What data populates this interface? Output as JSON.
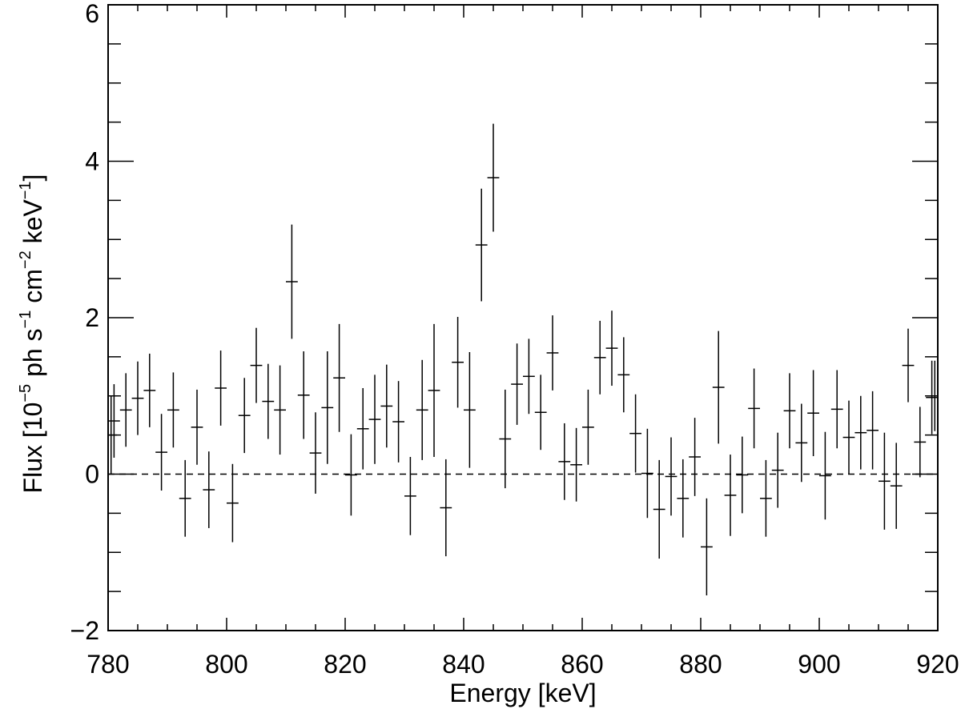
{
  "chart_data": {
    "type": "scatter",
    "xlabel": "Energy [keV]",
    "ylabel": {
      "prefix": "Flux [10",
      "exp1": "−5",
      "mid1": " ph s",
      "exp2": "−1",
      "mid2": " cm",
      "exp3": "−2",
      "mid3": " keV",
      "exp4": "−1",
      "suffix": "]"
    },
    "xlim": [
      780,
      920
    ],
    "ylim": [
      -2,
      6
    ],
    "x_ticks": [
      780,
      800,
      820,
      840,
      860,
      880,
      900,
      920
    ],
    "x_tick_labels": [
      "780",
      "800",
      "820",
      "840",
      "860",
      "880",
      "900",
      "920"
    ],
    "y_ticks": [
      -2,
      0,
      2,
      4,
      6
    ],
    "y_tick_labels": [
      "−2",
      "0",
      "2",
      "4",
      "6"
    ],
    "x_minor_step": 5,
    "y_minor_step": 0.5,
    "reference_line": {
      "y": 0,
      "style": "dashed"
    },
    "series": [
      {
        "bin_half_width": 1,
        "points": [
          {
            "x": 780.5,
            "y": 0.5,
            "err": 0.5
          },
          {
            "x": 781,
            "y": 0.68,
            "err": 0.47
          },
          {
            "x": 783,
            "y": 0.82,
            "err": 0.47
          },
          {
            "x": 785,
            "y": 0.97,
            "err": 0.47
          },
          {
            "x": 787,
            "y": 1.07,
            "err": 0.47
          },
          {
            "x": 789,
            "y": 0.28,
            "err": 0.49
          },
          {
            "x": 791,
            "y": 0.82,
            "err": 0.48
          },
          {
            "x": 793,
            "y": -0.31,
            "err": 0.49
          },
          {
            "x": 795,
            "y": 0.6,
            "err": 0.48
          },
          {
            "x": 797,
            "y": -0.2,
            "err": 0.49
          },
          {
            "x": 799,
            "y": 1.1,
            "err": 0.48
          },
          {
            "x": 801,
            "y": -0.37,
            "err": 0.5
          },
          {
            "x": 803,
            "y": 0.75,
            "err": 0.48
          },
          {
            "x": 805,
            "y": 1.39,
            "err": 0.48
          },
          {
            "x": 807,
            "y": 0.93,
            "err": 0.48
          },
          {
            "x": 809,
            "y": 0.82,
            "err": 0.57
          },
          {
            "x": 811,
            "y": 2.46,
            "err": 0.73
          },
          {
            "x": 813,
            "y": 1.01,
            "err": 0.56
          },
          {
            "x": 815,
            "y": 0.27,
            "err": 0.52
          },
          {
            "x": 817,
            "y": 0.85,
            "err": 0.72
          },
          {
            "x": 819,
            "y": 1.23,
            "err": 0.69
          },
          {
            "x": 821,
            "y": -0.01,
            "err": 0.52
          },
          {
            "x": 823,
            "y": 0.58,
            "err": 0.52
          },
          {
            "x": 825,
            "y": 0.7,
            "err": 0.57
          },
          {
            "x": 827,
            "y": 0.87,
            "err": 0.53
          },
          {
            "x": 829,
            "y": 0.67,
            "err": 0.52
          },
          {
            "x": 831,
            "y": -0.28,
            "err": 0.5
          },
          {
            "x": 833,
            "y": 0.82,
            "err": 0.64
          },
          {
            "x": 835,
            "y": 1.07,
            "err": 0.85
          },
          {
            "x": 837,
            "y": -0.43,
            "err": 0.62
          },
          {
            "x": 839,
            "y": 1.43,
            "err": 0.58
          },
          {
            "x": 841,
            "y": 0.82,
            "err": 0.74
          },
          {
            "x": 843,
            "y": 2.93,
            "err": 0.72
          },
          {
            "x": 845,
            "y": 3.79,
            "err": 0.69
          },
          {
            "x": 847,
            "y": 0.45,
            "err": 0.63
          },
          {
            "x": 849,
            "y": 1.15,
            "err": 0.52
          },
          {
            "x": 851,
            "y": 1.25,
            "err": 0.48
          },
          {
            "x": 853,
            "y": 0.79,
            "err": 0.48
          },
          {
            "x": 855,
            "y": 1.55,
            "err": 0.48
          },
          {
            "x": 857,
            "y": 0.16,
            "err": 0.49
          },
          {
            "x": 859,
            "y": 0.12,
            "err": 0.47
          },
          {
            "x": 861,
            "y": 0.6,
            "err": 0.48
          },
          {
            "x": 863,
            "y": 1.49,
            "err": 0.47
          },
          {
            "x": 865,
            "y": 1.61,
            "err": 0.48
          },
          {
            "x": 867,
            "y": 1.27,
            "err": 0.48
          },
          {
            "x": 869,
            "y": 0.52,
            "err": 0.5
          },
          {
            "x": 871,
            "y": 0.01,
            "err": 0.57
          },
          {
            "x": 873,
            "y": -0.45,
            "err": 0.63
          },
          {
            "x": 875,
            "y": -0.03,
            "err": 0.5
          },
          {
            "x": 877,
            "y": -0.31,
            "err": 0.5
          },
          {
            "x": 879,
            "y": 0.22,
            "err": 0.5
          },
          {
            "x": 881,
            "y": -0.93,
            "err": 0.62
          },
          {
            "x": 883,
            "y": 1.11,
            "err": 0.72
          },
          {
            "x": 885,
            "y": -0.27,
            "err": 0.52
          },
          {
            "x": 887,
            "y": -0.01,
            "err": 0.49
          },
          {
            "x": 889,
            "y": 0.84,
            "err": 0.51
          },
          {
            "x": 891,
            "y": -0.31,
            "err": 0.49
          },
          {
            "x": 893,
            "y": 0.05,
            "err": 0.48
          },
          {
            "x": 895,
            "y": 0.81,
            "err": 0.48
          },
          {
            "x": 897,
            "y": 0.4,
            "err": 0.5
          },
          {
            "x": 899,
            "y": 0.78,
            "err": 0.55
          },
          {
            "x": 901,
            "y": -0.02,
            "err": 0.56
          },
          {
            "x": 903,
            "y": 0.83,
            "err": 0.5
          },
          {
            "x": 905,
            "y": 0.47,
            "err": 0.47
          },
          {
            "x": 907,
            "y": 0.53,
            "err": 0.47
          },
          {
            "x": 909,
            "y": 0.56,
            "err": 0.5
          },
          {
            "x": 911,
            "y": -0.09,
            "err": 0.62
          },
          {
            "x": 913,
            "y": -0.15,
            "err": 0.55
          },
          {
            "x": 915,
            "y": 1.39,
            "err": 0.47
          },
          {
            "x": 917,
            "y": 0.41,
            "err": 0.45
          },
          {
            "x": 919,
            "y": 0.98,
            "err": 0.47
          },
          {
            "x": 919.5,
            "y": 1.0,
            "err": 0.45
          }
        ]
      }
    ]
  }
}
